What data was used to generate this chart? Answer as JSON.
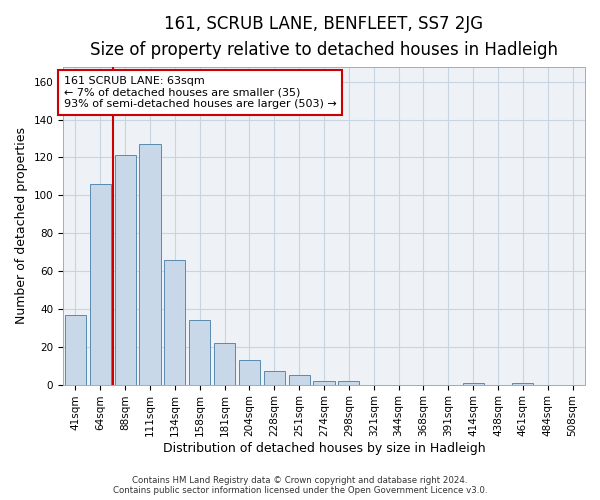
{
  "title": "161, SCRUB LANE, BENFLEET, SS7 2JG",
  "subtitle": "Size of property relative to detached houses in Hadleigh",
  "xlabel": "Distribution of detached houses by size in Hadleigh",
  "ylabel": "Number of detached properties",
  "footer_line1": "Contains HM Land Registry data © Crown copyright and database right 2024.",
  "footer_line2": "Contains public sector information licensed under the Open Government Licence v3.0.",
  "categories": [
    "41sqm",
    "64sqm",
    "88sqm",
    "111sqm",
    "134sqm",
    "158sqm",
    "181sqm",
    "204sqm",
    "228sqm",
    "251sqm",
    "274sqm",
    "298sqm",
    "321sqm",
    "344sqm",
    "368sqm",
    "391sqm",
    "414sqm",
    "438sqm",
    "461sqm",
    "484sqm",
    "508sqm"
  ],
  "values": [
    37,
    106,
    121,
    127,
    66,
    34,
    22,
    13,
    7,
    5,
    2,
    2,
    0,
    0,
    0,
    0,
    1,
    0,
    1,
    0,
    0
  ],
  "bar_color": "#c8d8e8",
  "bar_edge_color": "#5a8ab0",
  "property_line_x": 1.5,
  "property_line_label": "161 SCRUB LANE: 63sqm",
  "annotation_line1": "← 7% of detached houses are smaller (35)",
  "annotation_line2": "93% of semi-detached houses are larger (503) →",
  "ylim": [
    0,
    168
  ],
  "yticks": [
    0,
    20,
    40,
    60,
    80,
    100,
    120,
    140,
    160
  ],
  "grid_color": "#c8d4e0",
  "background_color": "#eef2f6",
  "line_color": "#cc0000",
  "title_fontsize": 12,
  "subtitle_fontsize": 10,
  "axis_label_fontsize": 9,
  "tick_fontsize": 7.5,
  "annotation_fontsize": 8
}
